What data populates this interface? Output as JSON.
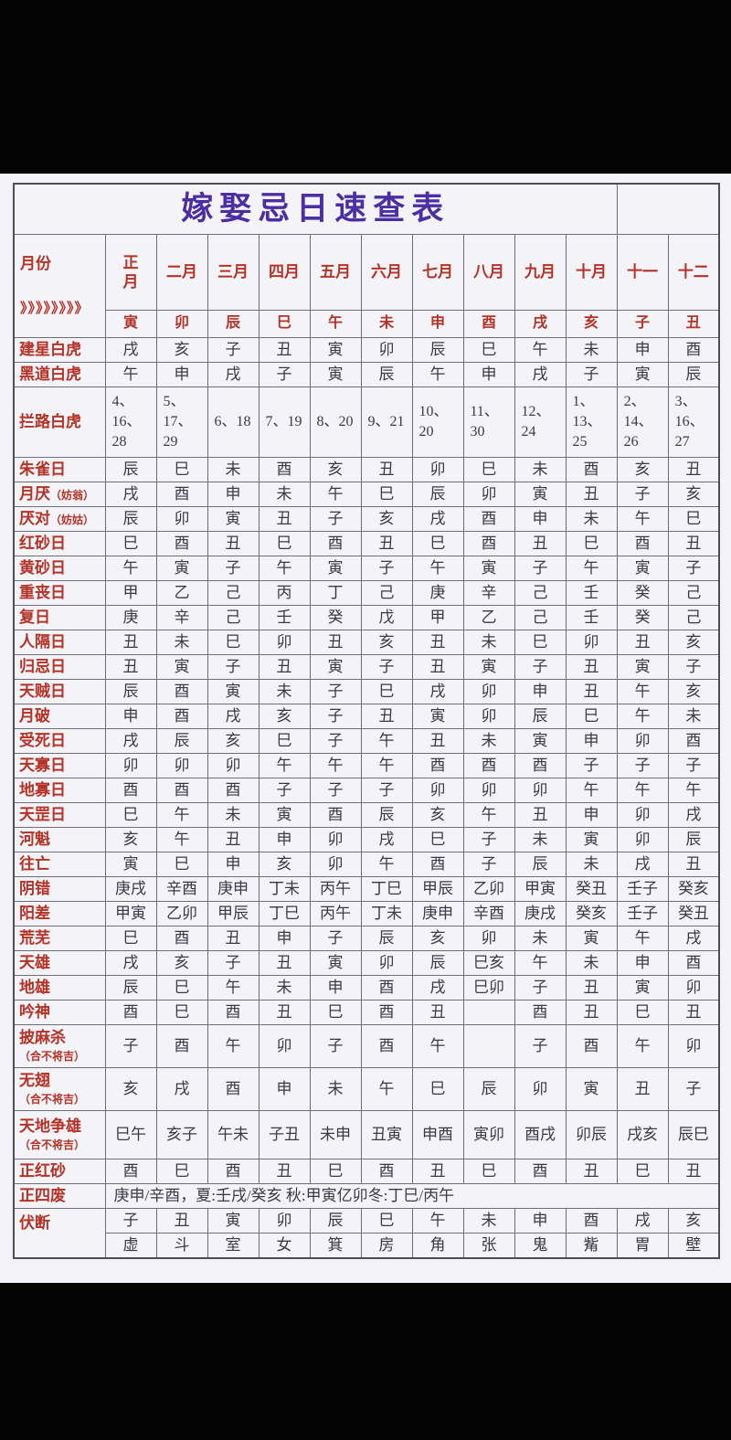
{
  "title": "嫁娶忌日速查表",
  "header": {
    "month_label": "月份",
    "month_arrows": "》》》》》》》》",
    "months": [
      "正\n月",
      "二月",
      "三月",
      "四月",
      "五月",
      "六月",
      "七月",
      "八月",
      "九月",
      "十月",
      "十一",
      "十二"
    ],
    "branches": [
      "寅",
      "卯",
      "辰",
      "巳",
      "午",
      "未",
      "申",
      "酉",
      "戌",
      "亥",
      "子",
      "丑"
    ]
  },
  "colors": {
    "label_red": "#b43226",
    "title_purple": "#4b2da4",
    "data_ink": "#3a3a47",
    "grid_line": "#6e6e79",
    "page_background": "#f3f2f7",
    "band_black": "#030303"
  },
  "rows": [
    {
      "label": "建星白虎",
      "cells": [
        "戌",
        "亥",
        "子",
        "丑",
        "寅",
        "卯",
        "辰",
        "巳",
        "午",
        "未",
        "申",
        "酉"
      ]
    },
    {
      "label": "黑道白虎",
      "cells": [
        "午",
        "申",
        "戌",
        "子",
        "寅",
        "辰",
        "午",
        "申",
        "戌",
        "子",
        "寅",
        "辰"
      ]
    },
    {
      "label": "拦路白虎",
      "type": "tall3",
      "cells": [
        "4、\n16、\n28",
        "5、\n17、\n29",
        "6、18",
        "7、19",
        "8、20",
        "9、21",
        "10、\n20",
        "11、\n30",
        "12、\n24",
        "1、\n13、\n25",
        "2、\n14、\n26",
        "3、\n16、\n27"
      ]
    },
    {
      "label": "朱雀日",
      "cells": [
        "辰",
        "巳",
        "未",
        "酉",
        "亥",
        "丑",
        "卯",
        "巳",
        "未",
        "酉",
        "亥",
        "丑"
      ]
    },
    {
      "label": "月厌",
      "inline_sub": "（妨翁）",
      "cells": [
        "戌",
        "酉",
        "申",
        "未",
        "午",
        "巳",
        "辰",
        "卯",
        "寅",
        "丑",
        "子",
        "亥"
      ]
    },
    {
      "label": "厌对",
      "inline_sub": "（妨姑）",
      "cells": [
        "辰",
        "卯",
        "寅",
        "丑",
        "子",
        "亥",
        "戌",
        "酉",
        "申",
        "未",
        "午",
        "巳"
      ]
    },
    {
      "label": "红砂日",
      "cells": [
        "巳",
        "酉",
        "丑",
        "巳",
        "酉",
        "丑",
        "巳",
        "酉",
        "丑",
        "巳",
        "酉",
        "丑"
      ]
    },
    {
      "label": "黄砂日",
      "cells": [
        "午",
        "寅",
        "子",
        "午",
        "寅",
        "子",
        "午",
        "寅",
        "子",
        "午",
        "寅",
        "子"
      ]
    },
    {
      "label": "重丧日",
      "cells": [
        "甲",
        "乙",
        "己",
        "丙",
        "丁",
        "己",
        "庚",
        "辛",
        "己",
        "壬",
        "癸",
        "己"
      ]
    },
    {
      "label": "复日",
      "cells": [
        "庚",
        "辛",
        "己",
        "壬",
        "癸",
        "戊",
        "甲",
        "乙",
        "己",
        "壬",
        "癸",
        "己"
      ]
    },
    {
      "label": "人隔日",
      "cells": [
        "丑",
        "未",
        "巳",
        "卯",
        "丑",
        "亥",
        "丑",
        "未",
        "巳",
        "卯",
        "丑",
        "亥"
      ]
    },
    {
      "label": "归忌日",
      "cells": [
        "丑",
        "寅",
        "子",
        "丑",
        "寅",
        "子",
        "丑",
        "寅",
        "子",
        "丑",
        "寅",
        "子"
      ]
    },
    {
      "label": "天贼日",
      "cells": [
        "辰",
        "酉",
        "寅",
        "未",
        "子",
        "巳",
        "戌",
        "卯",
        "申",
        "丑",
        "午",
        "亥"
      ]
    },
    {
      "label": "月破",
      "cells": [
        "申",
        "酉",
        "戌",
        "亥",
        "子",
        "丑",
        "寅",
        "卯",
        "辰",
        "巳",
        "午",
        "未"
      ]
    },
    {
      "label": "受死日",
      "cells": [
        "戌",
        "辰",
        "亥",
        "巳",
        "子",
        "午",
        "丑",
        "未",
        "寅",
        "申",
        "卯",
        "酉"
      ]
    },
    {
      "label": "天寡日",
      "cells": [
        "卯",
        "卯",
        "卯",
        "午",
        "午",
        "午",
        "酉",
        "酉",
        "酉",
        "子",
        "子",
        "子"
      ]
    },
    {
      "label": "地寡日",
      "cells": [
        "酉",
        "酉",
        "酉",
        "子",
        "子",
        "子",
        "卯",
        "卯",
        "卯",
        "午",
        "午",
        "午"
      ]
    },
    {
      "label": "天罡日",
      "cells": [
        "巳",
        "午",
        "未",
        "寅",
        "酉",
        "辰",
        "亥",
        "午",
        "丑",
        "申",
        "卯",
        "戌"
      ]
    },
    {
      "label": "河魁",
      "cells": [
        "亥",
        "午",
        "丑",
        "申",
        "卯",
        "戌",
        "巳",
        "子",
        "未",
        "寅",
        "卯",
        "辰"
      ]
    },
    {
      "label": "往亡",
      "cells": [
        "寅",
        "巳",
        "申",
        "亥",
        "卯",
        "午",
        "酉",
        "子",
        "辰",
        "未",
        "戌",
        "丑"
      ]
    },
    {
      "label": "阴错",
      "cells": [
        "庚戌",
        "辛酉",
        "庚申",
        "丁未",
        "丙午",
        "丁巳",
        "甲辰",
        "乙卯",
        "甲寅",
        "癸丑",
        "壬子",
        "癸亥"
      ]
    },
    {
      "label": "阳差",
      "cells": [
        "甲寅",
        "乙卯",
        "甲辰",
        "丁巳",
        "丙午",
        "丁未",
        "庚申",
        "辛酉",
        "庚戌",
        "癸亥",
        "壬子",
        "癸丑"
      ]
    },
    {
      "label": "荒芜",
      "cells": [
        "巳",
        "酉",
        "丑",
        "申",
        "子",
        "辰",
        "亥",
        "卯",
        "未",
        "寅",
        "午",
        "戌"
      ]
    },
    {
      "label": "天雄",
      "cells": [
        "戌",
        "亥",
        "子",
        "丑",
        "寅",
        "卯",
        "辰",
        "巳亥",
        "午",
        "未",
        "申",
        "酉"
      ]
    },
    {
      "label": "地雄",
      "cells": [
        "辰",
        "巳",
        "午",
        "未",
        "申",
        "酉",
        "戌",
        "巳卯",
        "子",
        "丑",
        "寅",
        "卯"
      ]
    },
    {
      "label": "吟神",
      "cells": [
        "酉",
        "巳",
        "酉",
        "丑",
        "巳",
        "酉",
        "丑",
        "",
        "酉",
        "丑",
        "巳",
        "丑"
      ]
    },
    {
      "label": "披麻杀",
      "sublabel": "（合不将吉）",
      "type": "tall2",
      "cells": [
        "子",
        "酉",
        "午",
        "卯",
        "子",
        "酉",
        "午",
        "",
        "子",
        "酉",
        "午",
        "卯"
      ]
    },
    {
      "label": "无翅",
      "sublabel": "（合不将吉）",
      "type": "tall2",
      "cells": [
        "亥",
        "戌",
        "酉",
        "申",
        "未",
        "午",
        "巳",
        "辰",
        "卯",
        "寅",
        "丑",
        "子"
      ]
    },
    {
      "label": "天地争雄",
      "sublabel": "（合不将吉）",
      "type": "tall2b",
      "cells": [
        "巳午",
        "亥子",
        "午未",
        "子丑",
        "未申",
        "丑寅",
        "申酉",
        "寅卯",
        "酉戌",
        "卯辰",
        "戌亥",
        "辰巳"
      ]
    },
    {
      "label": "正红砂",
      "cells": [
        "酉",
        "巳",
        "酉",
        "丑",
        "巳",
        "酉",
        "丑",
        "巳",
        "酉",
        "丑",
        "巳",
        "丑"
      ]
    },
    {
      "label": "正四废",
      "type": "merged",
      "merged_text": "庚申/辛酉，夏:壬戌/癸亥 秋:甲寅亿卯冬:丁巳/丙午"
    },
    {
      "label": "伏断",
      "type": "double",
      "cells": [
        "子",
        "丑",
        "寅",
        "卯",
        "辰",
        "巳",
        "午",
        "未",
        "申",
        "酉",
        "戌",
        "亥"
      ],
      "cells2": [
        "虚",
        "斗",
        "室",
        "女",
        "箕",
        "房",
        "角",
        "张",
        "鬼",
        "觜",
        "胃",
        "壁"
      ]
    }
  ]
}
